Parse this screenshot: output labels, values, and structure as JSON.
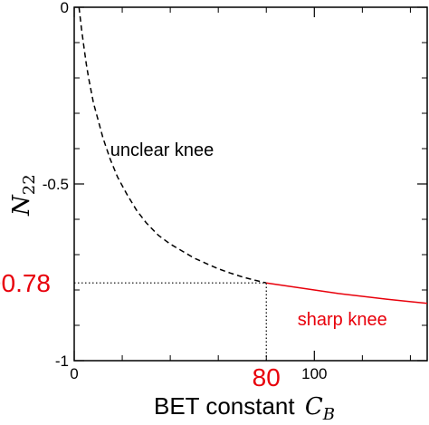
{
  "chart_data": {
    "type": "line",
    "xlabel": "BET constant",
    "xlabel_symbol": "C",
    "xlabel_subscript": "B",
    "ylabel_symbol": "N",
    "ylabel_subscript": "22",
    "xlim": [
      0,
      147
    ],
    "ylim": [
      -1,
      0
    ],
    "x_ticks": [
      0,
      100
    ],
    "x_tick_labels": [
      "0",
      "100"
    ],
    "x_minor_ticks": [
      20,
      40,
      60,
      80,
      120,
      140
    ],
    "y_ticks": [
      0,
      -0.5,
      -1
    ],
    "y_tick_labels": [
      "0",
      "-0.5",
      "-1"
    ],
    "y_minor_ticks": [
      -0.1,
      -0.2,
      -0.3,
      -0.4,
      -0.6,
      -0.7,
      -0.8,
      -0.9
    ],
    "grid": false,
    "series": [
      {
        "style": "dashed",
        "color": "#000000",
        "x": [
          2,
          3,
          4,
          5,
          6,
          8,
          10,
          12,
          15,
          18,
          22,
          26,
          30,
          35,
          40,
          45,
          50,
          55,
          60,
          65,
          70,
          75,
          80
        ],
        "y": [
          0,
          -0.06,
          -0.11,
          -0.16,
          -0.2,
          -0.27,
          -0.32,
          -0.37,
          -0.43,
          -0.48,
          -0.53,
          -0.575,
          -0.61,
          -0.645,
          -0.67,
          -0.69,
          -0.71,
          -0.725,
          -0.74,
          -0.752,
          -0.763,
          -0.772,
          -0.78
        ]
      },
      {
        "style": "solid",
        "color": "#e8000b",
        "x": [
          80,
          90,
          100,
          110,
          120,
          130,
          140,
          147
        ],
        "y": [
          -0.78,
          -0.79,
          -0.8,
          -0.81,
          -0.818,
          -0.826,
          -0.833,
          -0.838
        ]
      }
    ],
    "reference_lines": [
      {
        "orientation": "horizontal",
        "y": -0.78,
        "x_from": 0,
        "x_to": 80,
        "style": "dotted"
      },
      {
        "orientation": "vertical",
        "x": 80,
        "y_from": -1,
        "y_to": -0.78,
        "style": "dotted"
      }
    ],
    "highlight_labels": {
      "y_value": "−0.78",
      "x_value": "80",
      "color": "#e8000b"
    },
    "annotations": [
      {
        "text": "unclear knee",
        "x": 15,
        "y": -0.42,
        "color": "#000000"
      },
      {
        "text": "sharp knee",
        "x": 93,
        "y": -0.9,
        "color": "#e8000b"
      }
    ]
  }
}
